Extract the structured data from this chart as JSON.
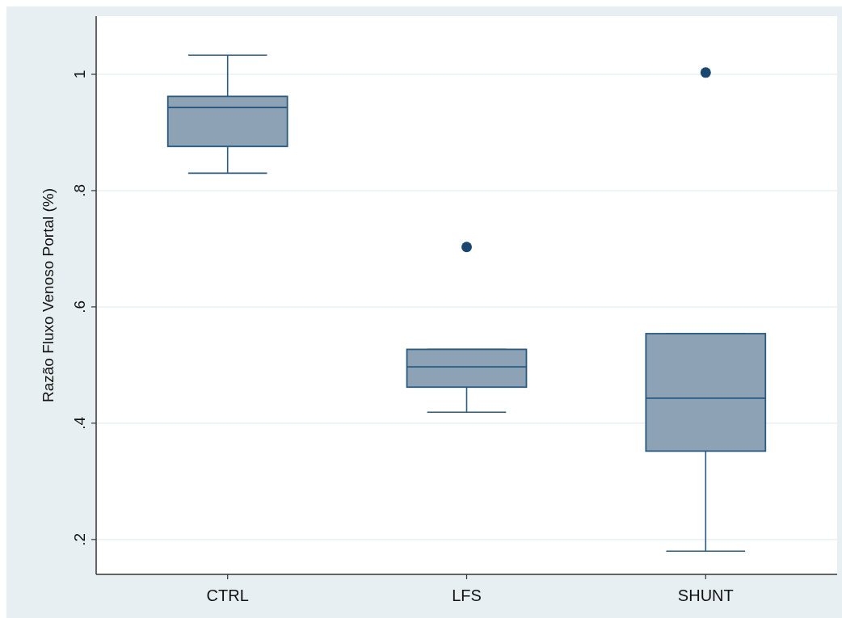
{
  "chart_data": {
    "type": "box",
    "ylabel": "Razão Fluxo Venoso Portal (%)",
    "categories": [
      "CTRL",
      "LFS",
      "SHUNT"
    ],
    "boxes": [
      {
        "low": 0.83,
        "q1": 0.876,
        "median": 0.943,
        "q3": 0.962,
        "high": 1.033
      },
      {
        "low": 0.419,
        "q1": 0.462,
        "median": 0.497,
        "q3": 0.527,
        "high": 0.527,
        "outliers": [
          0.703
        ]
      },
      {
        "low": 0.18,
        "q1": 0.352,
        "median": 0.443,
        "q3": 0.554,
        "high": 0.554,
        "outliers": [
          1.003
        ]
      }
    ],
    "color": "#8da2b5",
    "ylim": [
      0.14,
      1.1
    ],
    "yticks": [
      {
        "value": 0.2,
        "label": ".2"
      },
      {
        "value": 0.4,
        "label": ".4"
      },
      {
        "value": 0.6,
        "label": ".6"
      },
      {
        "value": 0.8,
        "label": ".8"
      },
      1
    ],
    "grid": "y"
  }
}
